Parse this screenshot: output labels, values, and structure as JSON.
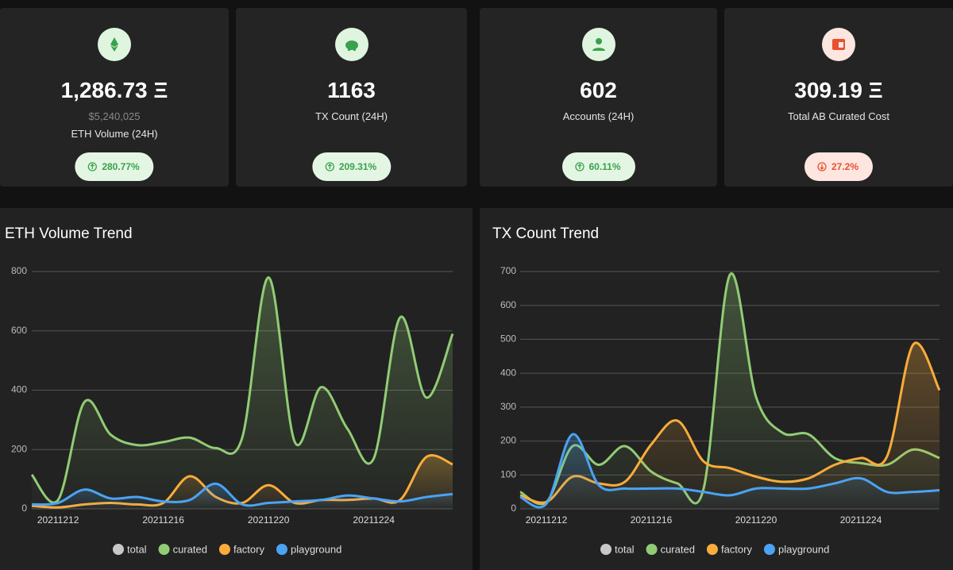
{
  "cards": [
    {
      "value": "1,286.73 Ξ",
      "sub": "$5,240,025",
      "label": "ETH Volume (24H)",
      "change": "280.77%",
      "trend": "up"
    },
    {
      "value": "1163",
      "label": "TX Count (24H)",
      "change": "209.31%",
      "trend": "up"
    },
    {
      "value": "602",
      "label": "Accounts (24H)",
      "change": "60.11%",
      "trend": "up"
    },
    {
      "value": "309.19 Ξ",
      "label": "Total AB Curated Cost",
      "change": "27.2%",
      "trend": "down"
    }
  ],
  "chart_data": [
    {
      "type": "line",
      "title": "ETH Volume Trend",
      "categories": [
        null,
        "20211212",
        null,
        null,
        null,
        "20211216",
        null,
        null,
        null,
        "20211220",
        null,
        null,
        null,
        "20211224",
        null,
        null,
        null
      ],
      "ylim": [
        0,
        800
      ],
      "yticks": [
        0,
        200,
        400,
        600,
        800
      ],
      "grid": true,
      "series": [
        {
          "name": "total",
          "color": "#c8c8c8"
        },
        {
          "name": "curated",
          "color": "#91cc75",
          "values": [
            115,
            30,
            360,
            250,
            215,
            225,
            240,
            205,
            240,
            780,
            225,
            410,
            270,
            170,
            645,
            375,
            590
          ]
        },
        {
          "name": "factory",
          "color": "#fbac3a",
          "values": [
            10,
            5,
            15,
            20,
            15,
            20,
            110,
            40,
            20,
            80,
            20,
            30,
            30,
            35,
            30,
            175,
            150
          ]
        },
        {
          "name": "playground",
          "color": "#4aa3f5",
          "values": [
            15,
            20,
            65,
            35,
            40,
            25,
            30,
            85,
            15,
            20,
            25,
            30,
            45,
            35,
            25,
            40,
            50
          ]
        }
      ]
    },
    {
      "type": "line",
      "title": "TX Count Trend",
      "categories": [
        null,
        "20211212",
        null,
        null,
        null,
        "20211216",
        null,
        null,
        null,
        "20211220",
        null,
        null,
        null,
        "20211224",
        null,
        null,
        null
      ],
      "ylim": [
        0,
        700
      ],
      "yticks": [
        0,
        100,
        200,
        300,
        400,
        500,
        600,
        700
      ],
      "grid": true,
      "series": [
        {
          "name": "total",
          "color": "#c8c8c8"
        },
        {
          "name": "curated",
          "color": "#91cc75",
          "values": [
            50,
            20,
            185,
            130,
            185,
            110,
            75,
            60,
            690,
            330,
            225,
            220,
            150,
            135,
            130,
            175,
            150
          ]
        },
        {
          "name": "factory",
          "color": "#fbac3a",
          "values": [
            40,
            20,
            95,
            75,
            80,
            190,
            260,
            140,
            120,
            95,
            80,
            90,
            130,
            150,
            155,
            485,
            350
          ]
        },
        {
          "name": "playground",
          "color": "#4aa3f5",
          "values": [
            35,
            15,
            220,
            70,
            60,
            60,
            60,
            50,
            40,
            60,
            60,
            60,
            75,
            90,
            50,
            50,
            55
          ]
        }
      ]
    }
  ]
}
